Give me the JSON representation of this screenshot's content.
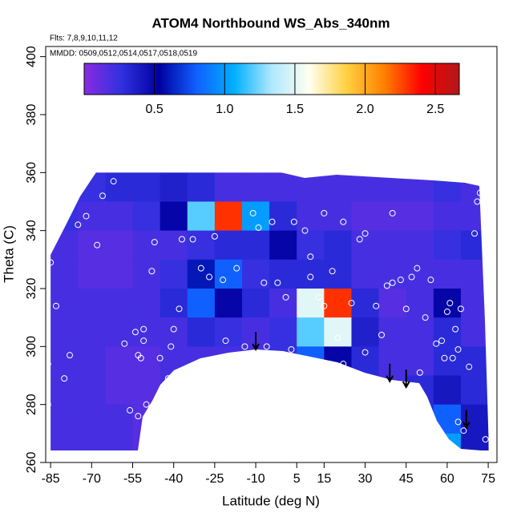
{
  "chart_data": {
    "type": "heatmap",
    "title": "ATOM4 Northbound WS_Abs_340nm",
    "subtitle": "Flts: 7,8,9,10,11,12",
    "annotation": "MMDD: 0509,0512,0514,0517,0518,0519",
    "x_label": "Latitude (deg N)",
    "y_label": "Theta (C)",
    "xlim": [
      -86.8,
      78.2
    ],
    "ylim": [
      260,
      403.5
    ],
    "xticks": [
      -85,
      -70,
      -55,
      -40,
      -25,
      -10,
      5,
      15,
      30,
      45,
      60,
      75
    ],
    "yticks": [
      260,
      280,
      300,
      320,
      340,
      360,
      380,
      400
    ],
    "x_bins": [
      -85,
      -75,
      -65,
      -55,
      -45,
      -35,
      -25,
      -15,
      -5,
      5,
      15,
      25,
      35,
      45,
      55,
      65,
      75
    ],
    "y_bins": [
      360,
      350,
      340,
      330,
      320,
      310,
      300,
      290,
      280,
      270,
      260
    ],
    "z": [
      [
        0.2,
        0.25,
        0.3,
        0.3,
        0.35,
        0.3,
        0.2,
        0.2,
        0.2,
        0.2,
        0.2,
        0.2,
        0.2,
        0.2,
        0.25,
        0.2
      ],
      [
        0.25,
        0.2,
        0.2,
        0.25,
        0.5,
        1.2,
        2.3,
        1.0,
        0.3,
        0.2,
        0.2,
        0.15,
        0.15,
        0.15,
        0.2,
        0.2
      ],
      [
        0.2,
        0.15,
        0.15,
        0.2,
        0.2,
        0.25,
        0.3,
        0.3,
        0.5,
        0.25,
        0.3,
        0.2,
        0.2,
        0.2,
        0.25,
        0.3
      ],
      [
        0.2,
        0.15,
        0.15,
        0.2,
        0.25,
        0.6,
        0.8,
        0.25,
        0.3,
        0.3,
        0.3,
        0.2,
        0.2,
        0.2,
        0.2,
        0.2
      ],
      [
        0.2,
        0.2,
        0.2,
        0.2,
        0.3,
        0.8,
        0.5,
        0.3,
        0.2,
        1.5,
        2.3,
        0.3,
        0.15,
        0.2,
        0.5,
        0.2
      ],
      [
        0.2,
        0.2,
        0.2,
        0.2,
        0.2,
        0.3,
        0.25,
        0.2,
        0.25,
        1.2,
        1.5,
        0.35,
        0.2,
        0.2,
        0.3,
        0.2
      ],
      [
        0.2,
        0.2,
        0.15,
        0.15,
        0.2,
        0.2,
        0.2,
        0.2,
        0.25,
        0.8,
        0.5,
        0.3,
        0.2,
        0.2,
        0.3,
        0.3
      ],
      [
        0.2,
        0.2,
        0.15,
        0.15,
        0.2,
        0.2,
        0.2,
        0.2,
        0.2,
        0.3,
        0.3,
        0.2,
        0.2,
        0.3,
        0.4,
        0.3
      ],
      [
        0.2,
        0.2,
        0.2,
        0.15,
        0.2,
        0.2,
        0.2,
        0.2,
        0.2,
        0.2,
        0.2,
        0.2,
        0.2,
        0.3,
        0.8,
        0.4
      ],
      [
        0.2,
        0.2,
        0.2,
        0.15,
        0.2,
        0.2,
        0.2,
        0.2,
        0.2,
        0.2,
        0.2,
        0.2,
        0.2,
        0.3,
        1.0,
        0.4
      ]
    ],
    "colorbar": {
      "lim": [
        0,
        2.67
      ],
      "ticks": [
        0.5,
        {
          "value": 1,
          "label": "1.0"
        },
        1.5,
        {
          "value": 2,
          "label": "2.0"
        },
        2.5
      ],
      "colors": [
        "#8a2be2",
        "#3030e0",
        "#0000a0",
        "#1060ff",
        "#00b0ff",
        "#b0e8ff",
        "#fffff0",
        "#ffd040",
        "#ff8000",
        "#ff0000",
        "#b01818"
      ]
    },
    "points": {
      "x": [
        -86,
        -86,
        -85,
        -83,
        -80,
        -78,
        -75,
        -72,
        -68,
        -66,
        -62,
        -58,
        -56,
        -54,
        -53,
        -52,
        -51,
        -53,
        -51,
        -50,
        -48,
        -47,
        -45,
        -42,
        -41,
        -40,
        -38,
        -37,
        -33,
        -30,
        -27,
        -25,
        -22,
        -21,
        -20,
        -17,
        -14,
        -11,
        -9,
        -7,
        -6,
        -4,
        -2,
        1,
        3,
        4,
        8,
        10,
        10,
        13,
        15,
        15,
        17,
        18,
        20,
        22,
        22,
        25,
        28,
        30,
        30,
        34,
        36,
        38,
        40,
        40,
        43,
        45,
        47,
        49,
        50,
        52,
        54,
        56,
        58,
        59,
        60,
        61,
        62,
        63,
        64,
        64,
        65,
        66,
        68,
        70,
        71,
        72,
        73,
        74,
        76,
        77,
        78,
        77
      ],
      "y": [
        294,
        280,
        329,
        314,
        289,
        297,
        342,
        345,
        335,
        352,
        357,
        301,
        278,
        305,
        297,
        296,
        306,
        276,
        302,
        280,
        326,
        336,
        296,
        289,
        300,
        306,
        313,
        337,
        337,
        327,
        324,
        338,
        323,
        302,
        296,
        327,
        300,
        346,
        341,
        322,
        300,
        343,
        322,
        317,
        299,
        343,
        340,
        324,
        331,
        317,
        346,
        314,
        294,
        326,
        303,
        343,
        294,
        315,
        337,
        339,
        298,
        314,
        304,
        321,
        346,
        322,
        323,
        313,
        324,
        327,
        291,
        310,
        323,
        301,
        302,
        296,
        312,
        315,
        296,
        306,
        299,
        274,
        313,
        271,
        293,
        339,
        350,
        353,
        355,
        268,
        322,
        306,
        297,
        265
      ]
    },
    "arrows": {
      "x": [
        -10,
        39,
        45,
        67
      ],
      "y": [
        299,
        288,
        286,
        272
      ]
    }
  }
}
